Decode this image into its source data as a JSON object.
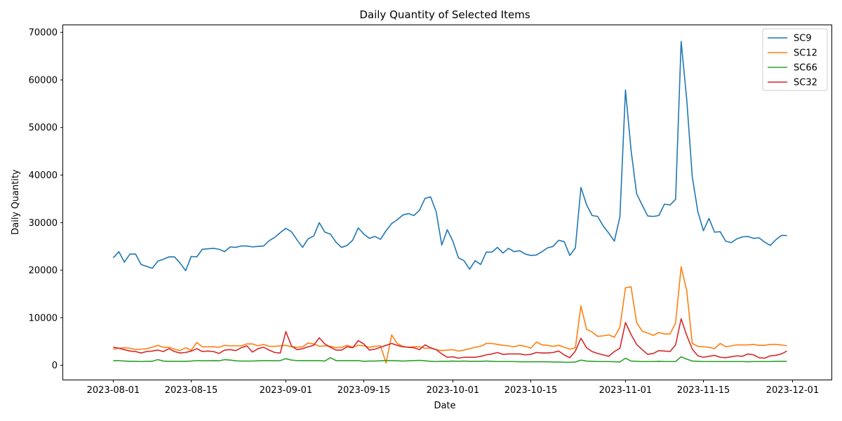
{
  "chart_data": {
    "type": "line",
    "title": "Daily Quantity of Selected Items",
    "xlabel": "Date",
    "ylabel": "Daily Quantity",
    "x_start": "2023-08-01",
    "x_end": "2023-11-30",
    "xlim": [
      "2023-07-23",
      "2023-12-08"
    ],
    "ylim": [
      -3000,
      71500
    ],
    "x_ticks": [
      "2023-08-01",
      "2023-08-15",
      "2023-09-01",
      "2023-09-15",
      "2023-10-01",
      "2023-10-15",
      "2023-11-01",
      "2023-11-15",
      "2023-12-01"
    ],
    "y_ticks": [
      0,
      10000,
      20000,
      30000,
      40000,
      50000,
      60000,
      70000
    ],
    "legend_position": "top-right",
    "grid": false,
    "series": [
      {
        "name": "SC9",
        "color": "#1f77b4",
        "values": [
          22600,
          23900,
          21700,
          23400,
          23400,
          21200,
          20800,
          20400,
          21900,
          22300,
          22800,
          22800,
          21500,
          19900,
          22900,
          22800,
          24400,
          24500,
          24600,
          24400,
          23900,
          24900,
          24800,
          25100,
          25100,
          24900,
          25000,
          25100,
          26200,
          26900,
          27900,
          28800,
          28100,
          26400,
          24800,
          26600,
          27200,
          30000,
          28000,
          27600,
          25900,
          24800,
          25200,
          26300,
          28900,
          27600,
          26700,
          27100,
          26500,
          28300,
          29800,
          30600,
          31600,
          31900,
          31500,
          32600,
          35100,
          35400,
          32300,
          25300,
          28500,
          26100,
          22600,
          22000,
          20200,
          22000,
          21200,
          23800,
          23800,
          24800,
          23600,
          24600,
          23900,
          24100,
          23400,
          23100,
          23200,
          23900,
          24700,
          25000,
          26300,
          26000,
          23100,
          24700,
          37400,
          33800,
          31500,
          31300,
          29300,
          27800,
          26100,
          31200,
          57900,
          45300,
          36100,
          33700,
          31400,
          31300,
          31500,
          33900,
          33700,
          34900,
          68100,
          55900,
          39600,
          32300,
          28300,
          30900,
          28000,
          28100,
          26100,
          25800,
          26600,
          27000,
          27100,
          26700,
          26800,
          25900,
          25200,
          26400,
          27300,
          27300
        ]
      },
      {
        "name": "SC12",
        "color": "#ff7f0e",
        "values": [
          3400,
          3600,
          3700,
          3600,
          3300,
          3400,
          3500,
          3800,
          4200,
          3800,
          3800,
          3400,
          3100,
          3700,
          3200,
          4800,
          3900,
          3900,
          3900,
          3800,
          4200,
          4100,
          4100,
          4100,
          4500,
          4500,
          4100,
          4400,
          4000,
          4000,
          4100,
          4200,
          3900,
          3800,
          3900,
          4700,
          4500,
          4000,
          4100,
          4000,
          3700,
          3800,
          4200,
          3800,
          4200,
          4100,
          3800,
          4000,
          4100,
          500,
          6400,
          4600,
          4000,
          3800,
          3900,
          3900,
          3600,
          3600,
          3300,
          3100,
          3200,
          3300,
          3000,
          3200,
          3500,
          3800,
          4000,
          4600,
          4600,
          4400,
          4200,
          4100,
          3900,
          4200,
          4000,
          3600,
          4900,
          4300,
          4200,
          4000,
          4200,
          3800,
          3400,
          3700,
          12500,
          7600,
          7000,
          6100,
          6200,
          6400,
          5900,
          8000,
          16300,
          16500,
          9000,
          7200,
          6800,
          6300,
          6900,
          6600,
          6600,
          8900,
          20700,
          15700,
          4600,
          4000,
          3900,
          3800,
          3500,
          4600,
          3900,
          4100,
          4300,
          4300,
          4300,
          4400,
          4200,
          4200,
          4400,
          4400,
          4300,
          4100
        ]
      },
      {
        "name": "SC66",
        "color": "#2ca02c",
        "values": [
          1000,
          1000,
          900,
          850,
          850,
          800,
          850,
          850,
          1200,
          900,
          850,
          850,
          850,
          850,
          900,
          1000,
          950,
          950,
          1000,
          950,
          1200,
          1100,
          950,
          900,
          900,
          900,
          950,
          1000,
          1000,
          950,
          1000,
          1400,
          1100,
          1000,
          1000,
          1000,
          1000,
          1000,
          900,
          1600,
          1000,
          1000,
          1000,
          1000,
          1000,
          850,
          900,
          900,
          950,
          1000,
          1000,
          950,
          900,
          950,
          1000,
          1050,
          950,
          850,
          800,
          850,
          850,
          900,
          850,
          900,
          850,
          850,
          850,
          900,
          850,
          800,
          800,
          800,
          800,
          750,
          750,
          750,
          750,
          750,
          750,
          700,
          700,
          650,
          650,
          700,
          1100,
          900,
          850,
          800,
          800,
          800,
          750,
          700,
          1500,
          900,
          850,
          800,
          800,
          800,
          850,
          800,
          800,
          800,
          1800,
          1300,
          900,
          850,
          800,
          800,
          800,
          800,
          800,
          800,
          800,
          800,
          750,
          800,
          800,
          800,
          800,
          850,
          850,
          850
        ]
      },
      {
        "name": "SC32",
        "color": "#d62728",
        "values": [
          3800,
          3600,
          3300,
          3000,
          2900,
          2600,
          2900,
          3000,
          3200,
          2900,
          3500,
          2900,
          2600,
          2700,
          3000,
          3500,
          2900,
          3000,
          2900,
          2500,
          3200,
          3300,
          3100,
          3700,
          4100,
          2800,
          3500,
          3800,
          3200,
          2700,
          2600,
          7100,
          4100,
          3300,
          3500,
          3900,
          4200,
          5800,
          4500,
          3800,
          3200,
          3200,
          3900,
          3700,
          5200,
          4500,
          3200,
          3400,
          3800,
          4200,
          4600,
          4200,
          3900,
          3800,
          3700,
          3300,
          4300,
          3700,
          3300,
          2400,
          1700,
          1800,
          1500,
          1700,
          1700,
          1700,
          1900,
          2200,
          2400,
          2700,
          2300,
          2400,
          2400,
          2400,
          2200,
          2300,
          2700,
          2600,
          2600,
          2700,
          3000,
          2200,
          1600,
          3000,
          5700,
          3700,
          2900,
          2500,
          2200,
          1900,
          2900,
          3600,
          9000,
          6500,
          4400,
          3300,
          2300,
          2500,
          3100,
          3000,
          2900,
          4300,
          9800,
          6300,
          3400,
          2000,
          1700,
          1900,
          2100,
          1700,
          1600,
          1800,
          2000,
          1900,
          2400,
          2200,
          1600,
          1500,
          2000,
          2100,
          2400,
          3000
        ]
      }
    ]
  }
}
